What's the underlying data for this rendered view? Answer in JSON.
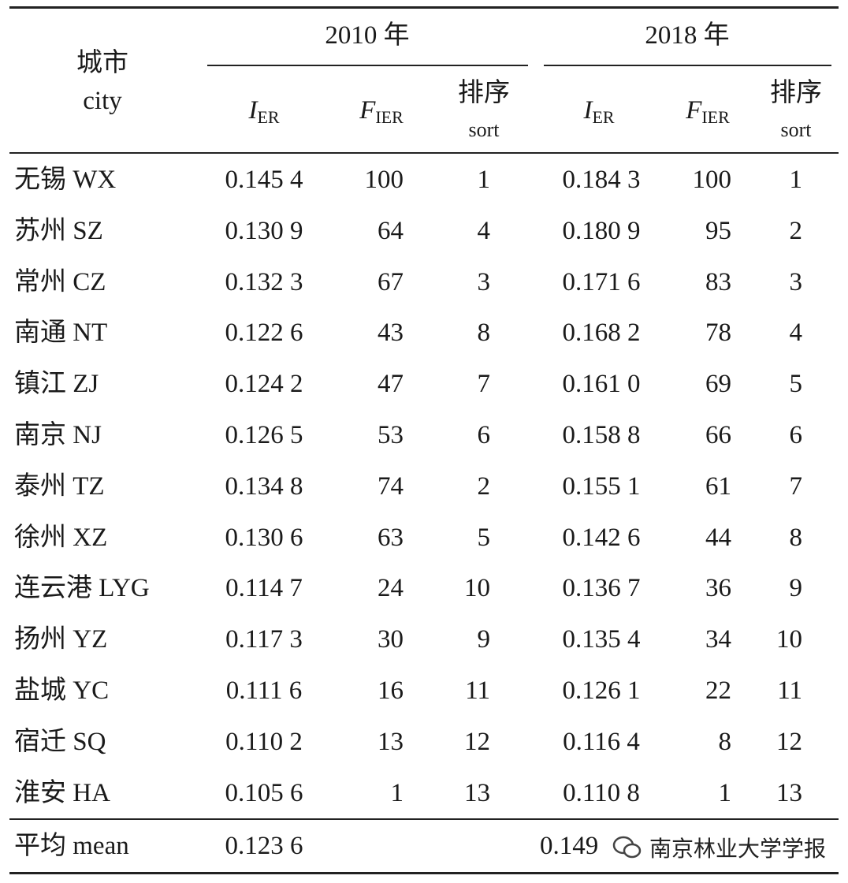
{
  "table": {
    "header": {
      "city_zh": "城市",
      "city_en": "city",
      "groups": [
        "2010 年",
        "2018 年"
      ],
      "columns": [
        {
          "symbol": "I",
          "subscript": "ER"
        },
        {
          "symbol": "F",
          "subscript": "IER"
        },
        {
          "zh": "排序",
          "en": "sort"
        },
        {
          "symbol": "I",
          "subscript": "ER"
        },
        {
          "symbol": "F",
          "subscript": "IER"
        },
        {
          "zh": "排序",
          "en": "sort"
        }
      ]
    },
    "rows": [
      [
        "无锡 WX",
        "0.145 4",
        "100",
        "1",
        "0.184 3",
        "100",
        "1"
      ],
      [
        "苏州 SZ",
        "0.130 9",
        "64",
        "4",
        "0.180 9",
        "95",
        "2"
      ],
      [
        "常州 CZ",
        "0.132 3",
        "67",
        "3",
        "0.171 6",
        "83",
        "3"
      ],
      [
        "南通 NT",
        "0.122 6",
        "43",
        "8",
        "0.168 2",
        "78",
        "4"
      ],
      [
        "镇江 ZJ",
        "0.124 2",
        "47",
        "7",
        "0.161 0",
        "69",
        "5"
      ],
      [
        "南京 NJ",
        "0.126 5",
        "53",
        "6",
        "0.158 8",
        "66",
        "6"
      ],
      [
        "泰州 TZ",
        "0.134 8",
        "74",
        "2",
        "0.155 1",
        "61",
        "7"
      ],
      [
        "徐州 XZ",
        "0.130 6",
        "63",
        "5",
        "0.142 6",
        "44",
        "8"
      ],
      [
        "连云港 LYG",
        "0.114 7",
        "24",
        "10",
        "0.136 7",
        "36",
        "9"
      ],
      [
        "扬州 YZ",
        "0.117 3",
        "30",
        "9",
        "0.135 4",
        "34",
        "10"
      ],
      [
        "盐城 YC",
        "0.111 6",
        "16",
        "11",
        "0.126 1",
        "22",
        "11"
      ],
      [
        "宿迁 SQ",
        "0.110 2",
        "13",
        "12",
        "0.116 4",
        "8",
        "12"
      ],
      [
        "淮安 HA",
        "0.105 6",
        "1",
        "13",
        "0.110 8",
        "1",
        "13"
      ]
    ],
    "mean": {
      "label": "平均 mean",
      "values": [
        "0.123 6",
        "0.149"
      ]
    },
    "watermark": "南京林业大学学报"
  }
}
